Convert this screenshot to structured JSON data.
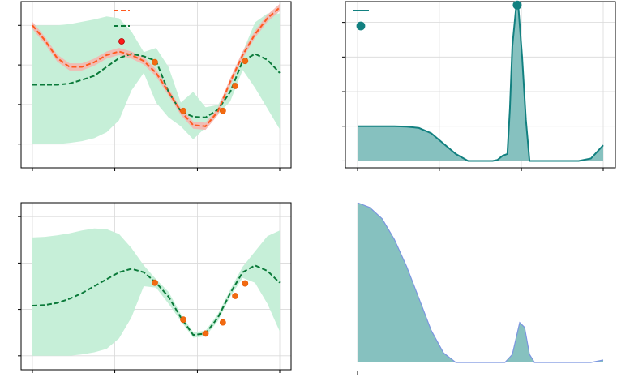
{
  "colors": {
    "background": "#ffffff",
    "grid": "#d9d9d9",
    "axes": "#000000",
    "true_function": "#ff5a1f",
    "true_band": "#f4b6b0",
    "gp_mean": "#0b7a3a",
    "gp_band": "#c6efd8",
    "observation": "#f26a10",
    "observation_edge": "#e35800",
    "legend_marker": "#ff1a1a",
    "acquisition": "#128080",
    "acquisition_fill": "#86c1bf",
    "prior_edge": "#7b95e0"
  },
  "chart_data": [
    {
      "id": "top-left",
      "type": "line",
      "title": "",
      "xlabel": "",
      "ylabel": "",
      "xlim": [
        0,
        1
      ],
      "ylim": [
        -0.4,
        2.4
      ],
      "grid": true,
      "legend": {
        "placement": "top-center",
        "entries": [
          {
            "marker": "dashed-line",
            "color": "#ff5a1f",
            "text": ""
          },
          {
            "marker": "dashed-line",
            "color": "#0b7a3a",
            "text": ""
          },
          {
            "marker": "dot",
            "color": "#ff1a1a",
            "text": ""
          }
        ]
      },
      "true_function": {
        "style": "dashed",
        "x": [
          0,
          0.05,
          0.1,
          0.15,
          0.2,
          0.25,
          0.3,
          0.35,
          0.4,
          0.45,
          0.5,
          0.55,
          0.6,
          0.65,
          0.7,
          0.75,
          0.8,
          0.85,
          0.9,
          0.95,
          1.0
        ],
        "y": [
          2.0,
          1.75,
          1.45,
          1.3,
          1.3,
          1.38,
          1.5,
          1.56,
          1.5,
          1.4,
          1.2,
          0.88,
          0.55,
          0.32,
          0.3,
          0.55,
          1.05,
          1.5,
          1.85,
          2.12,
          2.3
        ],
        "band": 0.06
      },
      "gp_mean": {
        "style": "dashed",
        "x": [
          0,
          0.05,
          0.1,
          0.15,
          0.2,
          0.25,
          0.3,
          0.35,
          0.4,
          0.45,
          0.5,
          0.55,
          0.6,
          0.65,
          0.7,
          0.75,
          0.8,
          0.85,
          0.9,
          0.95,
          1.0
        ],
        "y": [
          1.0,
          1.0,
          1.0,
          1.02,
          1.08,
          1.15,
          1.3,
          1.45,
          1.52,
          1.48,
          1.4,
          0.88,
          0.55,
          0.46,
          0.45,
          0.58,
          0.88,
          1.4,
          1.52,
          1.42,
          1.2
        ],
        "band_lower": [
          0.0,
          0.0,
          0.0,
          0.02,
          0.05,
          0.1,
          0.2,
          0.4,
          0.9,
          1.2,
          0.7,
          0.45,
          0.3,
          0.08,
          0.28,
          0.5,
          0.72,
          1.25,
          0.95,
          0.6,
          0.25
        ],
        "band_upper": [
          2.0,
          2.0,
          2.0,
          2.02,
          2.06,
          2.1,
          2.15,
          2.12,
          1.9,
          1.55,
          1.62,
          1.3,
          0.7,
          0.88,
          0.62,
          0.66,
          1.0,
          1.55,
          2.05,
          2.2,
          2.2
        ]
      },
      "observations": {
        "x": [
          0.495,
          0.61,
          0.77,
          0.82,
          0.86
        ],
        "y": [
          1.38,
          0.56,
          0.56,
          0.98,
          1.4
        ]
      }
    },
    {
      "id": "top-right",
      "type": "area",
      "title": "",
      "xlabel": "",
      "ylabel": "",
      "xlim": [
        0,
        1
      ],
      "ylim": [
        -0.02,
        0.46
      ],
      "grid": true,
      "legend": {
        "placement": "top-left",
        "entries": [
          {
            "marker": "line",
            "color": "#128080",
            "text": ""
          },
          {
            "marker": "dot",
            "color": "#128080",
            "text": ""
          }
        ]
      },
      "acquisition": {
        "x": [
          0,
          0.05,
          0.1,
          0.15,
          0.2,
          0.25,
          0.3,
          0.35,
          0.4,
          0.45,
          0.5,
          0.55,
          0.57,
          0.59,
          0.61,
          0.62,
          0.63,
          0.645,
          0.655,
          0.67,
          0.685,
          0.7,
          0.72,
          0.76,
          0.8,
          0.85,
          0.9,
          0.95,
          1.0
        ],
        "y": [
          0.1,
          0.1,
          0.1,
          0.1,
          0.099,
          0.095,
          0.08,
          0.05,
          0.02,
          0.0,
          0.0,
          0.0,
          0.003,
          0.015,
          0.02,
          0.15,
          0.33,
          0.44,
          0.44,
          0.3,
          0.12,
          0.0,
          0.0,
          0.0,
          0.0,
          0.0,
          0.0,
          0.007,
          0.045
        ]
      },
      "maximum": {
        "x": 0.65,
        "y": 0.45
      }
    },
    {
      "id": "bottom-left",
      "type": "line",
      "title": "",
      "xlabel": "",
      "ylabel": "",
      "xlim": [
        0,
        1
      ],
      "ylim": [
        -0.2,
        2.2
      ],
      "grid": true,
      "gp_mean": {
        "style": "dashed",
        "x": [
          0,
          0.05,
          0.1,
          0.15,
          0.2,
          0.25,
          0.3,
          0.35,
          0.4,
          0.45,
          0.5,
          0.55,
          0.6,
          0.65,
          0.7,
          0.75,
          0.8,
          0.85,
          0.9,
          0.95,
          1.0
        ],
        "y": [
          0.72,
          0.73,
          0.76,
          0.82,
          0.9,
          1.0,
          1.1,
          1.2,
          1.25,
          1.2,
          1.05,
          0.85,
          0.55,
          0.3,
          0.32,
          0.55,
          0.9,
          1.2,
          1.3,
          1.22,
          1.05
        ],
        "band_lower": [
          0.0,
          0.0,
          0.0,
          0.0,
          0.02,
          0.05,
          0.1,
          0.25,
          0.55,
          1.0,
          0.98,
          0.75,
          0.5,
          0.26,
          0.28,
          0.5,
          0.85,
          1.12,
          1.05,
          0.75,
          0.35
        ],
        "band_upper": [
          1.7,
          1.71,
          1.73,
          1.76,
          1.8,
          1.83,
          1.82,
          1.75,
          1.55,
          1.3,
          1.1,
          0.92,
          0.6,
          0.34,
          0.36,
          0.6,
          0.95,
          1.28,
          1.5,
          1.72,
          1.8
        ]
      },
      "observations": {
        "x": [
          0.495,
          0.61,
          0.7,
          0.77,
          0.82,
          0.86
        ],
        "y": [
          1.05,
          0.52,
          0.32,
          0.48,
          0.86,
          1.04
        ]
      }
    },
    {
      "id": "bottom-right",
      "type": "area",
      "title": "",
      "xlabel": "",
      "ylabel": "",
      "xlim": [
        0,
        1
      ],
      "ylim": [
        0,
        1
      ],
      "grid": false,
      "density": {
        "x": [
          0,
          0.05,
          0.1,
          0.15,
          0.2,
          0.25,
          0.3,
          0.35,
          0.4,
          0.45,
          0.5,
          0.55,
          0.6,
          0.63,
          0.66,
          0.68,
          0.7,
          0.72,
          0.75,
          0.8,
          0.85,
          0.9,
          0.95,
          1.0
        ],
        "y": [
          1.0,
          0.97,
          0.9,
          0.77,
          0.6,
          0.4,
          0.2,
          0.06,
          0.0,
          0.0,
          0.0,
          0.0,
          0.0,
          0.05,
          0.25,
          0.22,
          0.05,
          0.0,
          0.0,
          0.0,
          0.0,
          0.0,
          0.0,
          0.015
        ]
      }
    }
  ]
}
